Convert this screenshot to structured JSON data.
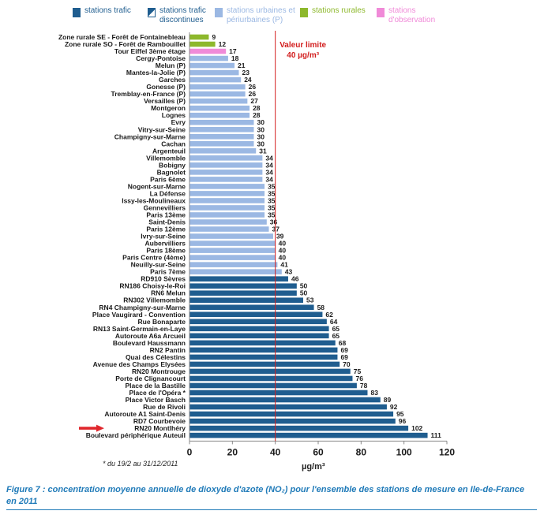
{
  "legend": [
    {
      "label": "stations trafic",
      "color": "#1f5d8f",
      "text_color": "#1f5d8f",
      "swatch": "solid"
    },
    {
      "label": "stations trafic discontinues",
      "color": "#1f5d8f",
      "text_color": "#1f5d8f",
      "swatch": "split"
    },
    {
      "label": "stations urbaines et périurbaines (P)",
      "color": "#9bb8e3",
      "text_color": "#9bb8e3",
      "swatch": "solid"
    },
    {
      "label": "stations rurales",
      "color": "#8db82c",
      "text_color": "#8db82c",
      "swatch": "solid"
    },
    {
      "label": "stations d'observation",
      "color": "#f08ad8",
      "text_color": "#f08ad8",
      "swatch": "solid"
    }
  ],
  "limit": {
    "value": 40,
    "label_line1": "Valeur limite",
    "label_line2": "40 µg/m³",
    "color": "#d21d1d"
  },
  "footnote": "* du 19/2 au 31/12/2011",
  "axis_unit": "µg/m³",
  "caption": "Figure 7 : concentration moyenne annuelle de dioxyde d'azote (NO₂) pour l'ensemble des stations de mesure en Ile-de-France en 2011",
  "colors": {
    "traffic": "#1f5d8f",
    "urban": "#9bb8e3",
    "rural": "#8db82c",
    "observation": "#f08ad8",
    "arrow": "#e0272d"
  },
  "chart_data": {
    "type": "bar",
    "orientation": "horizontal",
    "title": "",
    "xlabel": "µg/m³",
    "ylabel": "",
    "xlim": [
      0,
      120
    ],
    "xticks": [
      0,
      20,
      40,
      60,
      80,
      100,
      120
    ],
    "grid": false,
    "legend_position": "top",
    "categories": [
      "Zone rurale SE - Forêt de Fontainebleau",
      "Zone rurale SO - Forêt de Rambouillet",
      "Tour Eiffel 3ème étage",
      "Cergy-Pontoise",
      "Melun (P)",
      "Mantes-la-Jolie (P)",
      "Garches",
      "Gonesse (P)",
      "Tremblay-en-France (P)",
      "Versailles (P)",
      "Montgeron",
      "Lognes",
      "Evry",
      "Vitry-sur-Seine",
      "Champigny-sur-Marne",
      "Cachan",
      "Argenteuil",
      "Villemomble",
      "Bobigny",
      "Bagnolet",
      "Paris 6ème",
      "Nogent-sur-Marne",
      "La Défense",
      "Issy-les-Moulineaux",
      "Gennevilliers",
      "Paris 13ème",
      "Saint-Denis",
      "Paris 12ème",
      "Ivry-sur-Seine",
      "Aubervilliers",
      "Paris 18ème",
      "Paris Centre (4ème)",
      "Neuilly-sur-Seine",
      "Paris 7ème",
      "RD910 Sèvres",
      "RN186 Choisy-le-Roi",
      "RN6 Melun",
      "RN302 Villemomble",
      "RN4 Champigny-sur-Marne",
      "Place Vaugirard - Convention",
      "Rue Bonaparte",
      "RN13 Saint-Germain-en-Laye",
      "Autoroute A6a Arcueil",
      "Boulevard Haussmann",
      "RN2 Pantin",
      "Quai des Célestins",
      "Avenue des Champs Elysées",
      "RN20 Montrouge",
      "Porte de Clignancourt",
      "Place de la Bastille",
      "Place de l'Opéra *",
      "Place Victor Basch",
      "Rue de Rivoli",
      "Autoroute A1 Saint-Denis",
      "RD7 Courbevoie",
      "RN20 Montlhéry",
      "Boulevard périphérique Auteuil"
    ],
    "values": [
      9,
      12,
      17,
      18,
      21,
      23,
      24,
      26,
      26,
      27,
      28,
      28,
      30,
      30,
      30,
      30,
      31,
      34,
      34,
      34,
      34,
      35,
      35,
      35,
      35,
      35,
      36,
      37,
      39,
      40,
      40,
      40,
      41,
      43,
      46,
      50,
      50,
      53,
      58,
      62,
      64,
      65,
      65,
      68,
      69,
      69,
      70,
      75,
      76,
      78,
      83,
      89,
      92,
      95,
      96,
      102,
      111
    ],
    "station_types": [
      "rural",
      "rural",
      "observation",
      "urban",
      "urban",
      "urban",
      "urban",
      "urban",
      "urban",
      "urban",
      "urban",
      "urban",
      "urban",
      "urban",
      "urban",
      "urban",
      "urban",
      "urban",
      "urban",
      "urban",
      "urban",
      "urban",
      "urban",
      "urban",
      "urban",
      "urban",
      "urban",
      "urban",
      "urban",
      "urban",
      "urban",
      "urban",
      "urban",
      "urban",
      "traffic",
      "traffic",
      "traffic",
      "traffic",
      "traffic",
      "traffic",
      "traffic",
      "traffic",
      "traffic",
      "traffic",
      "traffic",
      "traffic",
      "traffic",
      "traffic",
      "traffic",
      "traffic",
      "traffic",
      "traffic",
      "traffic",
      "traffic",
      "traffic",
      "traffic",
      "traffic"
    ],
    "highlighted_category": "RN20 Montlhéry"
  }
}
